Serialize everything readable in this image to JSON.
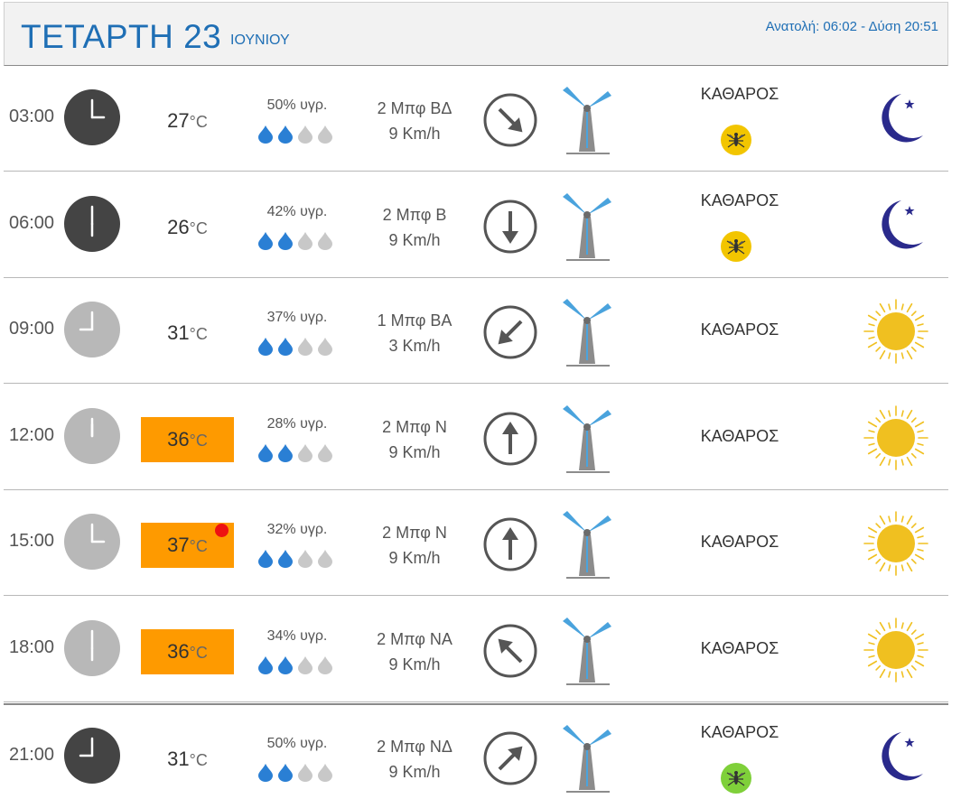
{
  "header": {
    "day": "ΤΕΤΑΡΤΗ 23",
    "month": "ΙΟΥΝΙΟΥ",
    "sun_times": "Ανατολή: 06:02  - Δύση 20:51"
  },
  "units": {
    "temp": "°C"
  },
  "rows": [
    {
      "time": "03:00",
      "temp": "27",
      "humidity": "50% υγρ.",
      "drops_filled": 2,
      "wind_bft": "2 Μπφ ΒΔ",
      "wind_kmh": "9 Km/h",
      "wind_dir": "ΒΔ",
      "condition": "ΚΑΘΑΡΟΣ",
      "mosquito": "yellow",
      "icon": "moon-icon",
      "hot": false,
      "alert": false
    },
    {
      "time": "06:00",
      "temp": "26",
      "humidity": "42% υγρ.",
      "drops_filled": 2,
      "wind_bft": "2 Μπφ Β",
      "wind_kmh": "9 Km/h",
      "wind_dir": "Β",
      "condition": "ΚΑΘΑΡΟΣ",
      "mosquito": "yellow",
      "icon": "moon-icon",
      "hot": false,
      "alert": false
    },
    {
      "time": "09:00",
      "temp": "31",
      "humidity": "37% υγρ.",
      "drops_filled": 2,
      "wind_bft": "1 Μπφ ΒΑ",
      "wind_kmh": "3 Km/h",
      "wind_dir": "ΒΑ",
      "condition": "ΚΑΘΑΡΟΣ",
      "mosquito": null,
      "icon": "sun-icon",
      "hot": false,
      "alert": false
    },
    {
      "time": "12:00",
      "temp": "36",
      "humidity": "28% υγρ.",
      "drops_filled": 2,
      "wind_bft": "2 Μπφ Ν",
      "wind_kmh": "9 Km/h",
      "wind_dir": "Ν",
      "condition": "ΚΑΘΑΡΟΣ",
      "mosquito": null,
      "icon": "sun-icon",
      "hot": true,
      "alert": false
    },
    {
      "time": "15:00",
      "temp": "37",
      "humidity": "32% υγρ.",
      "drops_filled": 2,
      "wind_bft": "2 Μπφ Ν",
      "wind_kmh": "9 Km/h",
      "wind_dir": "Ν",
      "condition": "ΚΑΘΑΡΟΣ",
      "mosquito": null,
      "icon": "sun-icon",
      "hot": true,
      "alert": true
    },
    {
      "time": "18:00",
      "temp": "36",
      "humidity": "34% υγρ.",
      "drops_filled": 2,
      "wind_bft": "2 Μπφ ΝΑ",
      "wind_kmh": "9 Km/h",
      "wind_dir": "ΝΑ",
      "condition": "ΚΑΘΑΡΟΣ",
      "mosquito": null,
      "icon": "sun-icon",
      "hot": true,
      "alert": false
    },
    {
      "time": "21:00",
      "temp": "31",
      "humidity": "50% υγρ.",
      "drops_filled": 2,
      "wind_bft": "2 Μπφ ΝΔ",
      "wind_kmh": "9 Km/h",
      "wind_dir": "ΝΔ",
      "condition": "ΚΑΘΑΡΟΣ",
      "mosquito": "green",
      "icon": "moon-icon",
      "hot": false,
      "alert": false
    }
  ],
  "colors": {
    "header_text": "#1f6fb5",
    "hot_bg": "#fe9a00",
    "alert": "#ee1111",
    "drop_filled": "#2a7fd4",
    "drop_empty": "#c8c8c8",
    "clock_dark": "#444444",
    "clock_light": "#b8b8b8",
    "turbine_blade": "#4aa3dd",
    "turbine_tower": "#8c8c8c",
    "mosquito_yellow": "#f2c500",
    "mosquito_green": "#7fd03a",
    "moon": "#2a2a8c",
    "sun": "#f0c020"
  }
}
